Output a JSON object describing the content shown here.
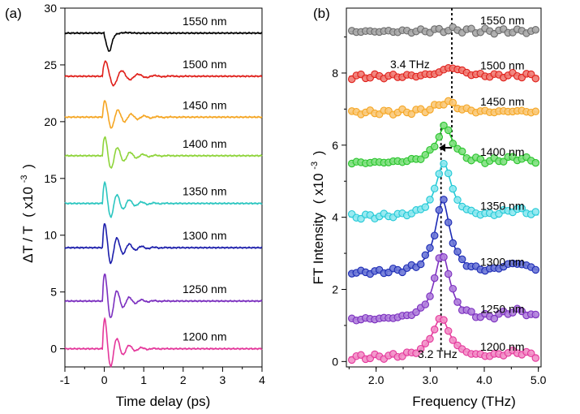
{
  "chart_data": [
    {
      "panel_label": "(a)",
      "type": "line",
      "xlabel": "Time delay (ps)",
      "ylabel_main": "ΔT / T",
      "ylabel_unit": "( x10",
      "ylabel_exp": "-3",
      "ylabel_close": ")",
      "xlim": [
        -1,
        4
      ],
      "ylim": [
        -1.6,
        30
      ],
      "xticks": [
        "-1",
        "0",
        "1",
        "2",
        "3",
        "4"
      ],
      "yticks": [
        "0",
        "5",
        "10",
        "15",
        "20",
        "25",
        "30"
      ],
      "series": [
        {
          "name": "1550 nm",
          "color": "#000000",
          "baseline": 27.8,
          "amp": 1.4,
          "freq": 1.3,
          "decay": 2.4,
          "mode": "dip"
        },
        {
          "name": "1500 nm",
          "color": "#e0201b",
          "baseline": 24.0,
          "amp": 1.6,
          "freq": 2.4,
          "decay": 1.9,
          "mode": "osc"
        },
        {
          "name": "1450 nm",
          "color": "#f5a623",
          "baseline": 20.4,
          "amp": 1.7,
          "freq": 3.0,
          "decay": 1.8,
          "mode": "osc"
        },
        {
          "name": "1400 nm",
          "color": "#8ed43a",
          "baseline": 17.0,
          "amp": 2.0,
          "freq": 3.1,
          "decay": 1.7,
          "mode": "osc"
        },
        {
          "name": "1350 nm",
          "color": "#2cc6c0",
          "baseline": 12.8,
          "amp": 2.2,
          "freq": 3.2,
          "decay": 1.6,
          "mode": "osc"
        },
        {
          "name": "1300 nm",
          "color": "#1c1eab",
          "baseline": 8.9,
          "amp": 2.6,
          "freq": 3.2,
          "decay": 1.5,
          "mode": "osc"
        },
        {
          "name": "1250 nm",
          "color": "#7b2fbf",
          "baseline": 4.2,
          "amp": 3.0,
          "freq": 3.2,
          "decay": 1.4,
          "mode": "osc"
        },
        {
          "name": "1200 nm",
          "color": "#e4379b",
          "baseline": 0.0,
          "amp": 3.3,
          "freq": 3.2,
          "decay": 1.3,
          "mode": "osc"
        }
      ]
    },
    {
      "panel_label": "(b)",
      "type": "scatter",
      "xlabel": "Frequency (THz)",
      "ylabel_main": "FT Intensity",
      "ylabel_unit": "( x10",
      "ylabel_exp": "-3",
      "ylabel_close": ")",
      "xlim": [
        1.45,
        5.05
      ],
      "ylim": [
        -0.15,
        9.8
      ],
      "xticks": [
        "2.0",
        "3.0",
        "4.0",
        "5.0"
      ],
      "yticks": [
        "0",
        "2",
        "4",
        "6",
        "8"
      ],
      "annotations": [
        {
          "text": "3.4 THz",
          "x": 3.4
        },
        {
          "text": "3.2 THz",
          "x": 3.2
        }
      ],
      "series": [
        {
          "name": "1550 nm",
          "color": "#6b6b6b",
          "face": "#a8a8a8",
          "baseline": 9.15,
          "peak": 0.05,
          "center": 3.4,
          "width": 0.5
        },
        {
          "name": "1500 nm",
          "color": "#e0201b",
          "face": "#f07a72",
          "baseline": 7.9,
          "peak": 0.25,
          "center": 3.4,
          "width": 0.35
        },
        {
          "name": "1450 nm",
          "color": "#f5a623",
          "face": "#f9c97a",
          "baseline": 6.9,
          "peak": 0.3,
          "center": 3.3,
          "width": 0.33
        },
        {
          "name": "1400 nm",
          "color": "#29c42c",
          "face": "#7fe07f",
          "baseline": 5.5,
          "peak": 1.0,
          "center": 3.27,
          "width": 0.28
        },
        {
          "name": "1350 nm",
          "color": "#22c9d6",
          "face": "#8ee8ef",
          "baseline": 4.0,
          "peak": 1.5,
          "center": 3.25,
          "width": 0.26
        },
        {
          "name": "1300 nm",
          "color": "#1c2bb5",
          "face": "#6d78d6",
          "baseline": 2.45,
          "peak": 2.0,
          "center": 3.23,
          "width": 0.25
        },
        {
          "name": "1250 nm",
          "color": "#7b2fbf",
          "face": "#b07fdc",
          "baseline": 1.15,
          "peak": 1.85,
          "center": 3.22,
          "width": 0.26
        },
        {
          "name": "1200 nm",
          "color": "#e4379b",
          "face": "#f28ec6",
          "baseline": 0.1,
          "peak": 1.1,
          "center": 3.2,
          "width": 0.3
        }
      ]
    }
  ]
}
